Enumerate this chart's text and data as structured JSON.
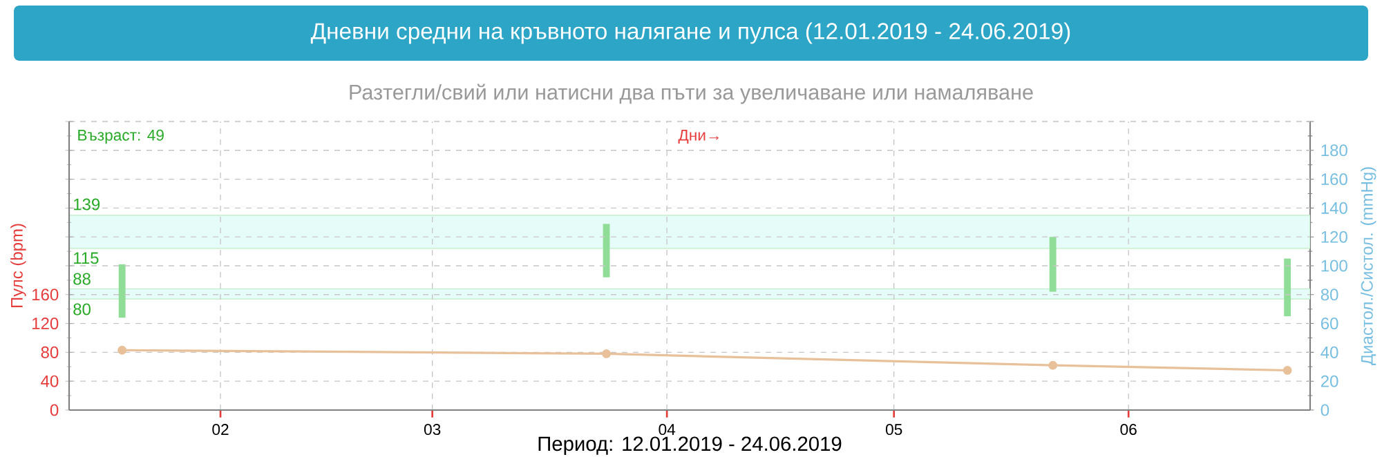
{
  "chart_data": {
    "type": "bar",
    "title": "Дневни средни на кръвното налягане и пулса (12.01.2019 - 24.06.2019)",
    "subtitle": "Разтегли/свий или натисни два пъти за увеличаване или намаляване",
    "xlabel": "Период: 12.01.2019 - 24.06.2019",
    "ylabel": "Пулс (bpm)",
    "y2label": "Диастол./Систол. (mmHg)",
    "annotations": [
      "Възраст: 49",
      "Дни→",
      "139",
      "115",
      "88",
      "80"
    ],
    "x": [
      "2019-01-19",
      "2019-03-24",
      "2019-05-22",
      "2019-06-22"
    ],
    "series": [
      {
        "axis": "y2",
        "color": "#90dd98",
        "base": [
          64,
          92,
          82,
          65
        ],
        "values": [
          37,
          37,
          38,
          40
        ]
      },
      {
        "type": "line",
        "color": "#e8c09a",
        "values": [
          83,
          78,
          62,
          55
        ]
      }
    ],
    "marker": "circle",
    "grid": true,
    "xlim": [
      "2019-01-12",
      "2019-06-25"
    ],
    "xticks": [
      {
        "value": "2019-02-01",
        "label": "02"
      },
      {
        "value": "2019-03-01",
        "label": "03"
      },
      {
        "value": "2019-04-01",
        "label": "04"
      },
      {
        "value": "2019-05-01",
        "label": "05"
      },
      {
        "value": "2019-06-01",
        "label": "06"
      }
    ],
    "ylim": [
      0,
      400
    ],
    "yticks": [
      0,
      40,
      80,
      120,
      160,
      {
        "value": 200,
        "label": null
      },
      {
        "value": 240,
        "label": null
      },
      {
        "value": 280,
        "label": null
      },
      {
        "value": 320,
        "label": null
      },
      {
        "value": 360,
        "label": null
      },
      {
        "value": 400,
        "label": null
      }
    ],
    "y2lim": [
      0,
      200
    ],
    "y2ticks": [
      0,
      20,
      40,
      60,
      80,
      100,
      120,
      140,
      160,
      180,
      {
        "value": 200,
        "label": null
      }
    ],
    "bands": [
      {
        "axis": "y2",
        "from": 77,
        "to": 84,
        "color": "#e6fcf9"
      },
      {
        "axis": "y2",
        "from": 112,
        "to": 135,
        "color": "#e6fcf9"
      }
    ]
  }
}
